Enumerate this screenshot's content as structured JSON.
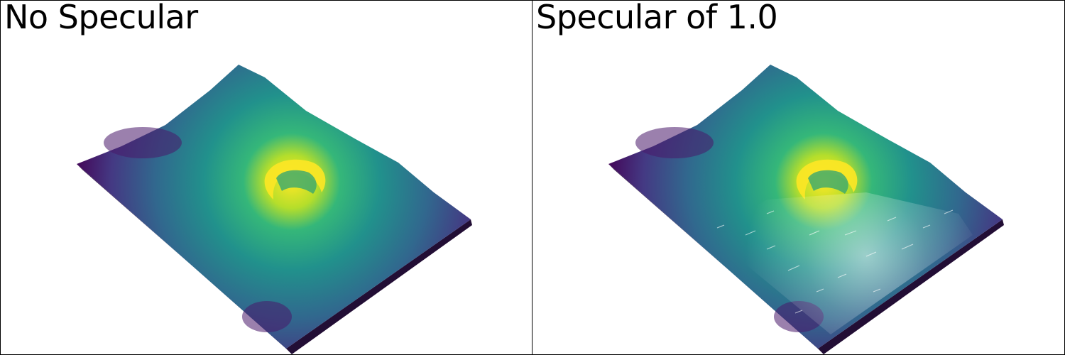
{
  "viewports": [
    {
      "title": "No Specular",
      "specular": 0.0,
      "colormap": "viridis"
    },
    {
      "title": "Specular of 1.0",
      "specular": 1.0,
      "colormap": "viridis"
    }
  ],
  "colors": {
    "background": "#ffffff",
    "border": "#000000",
    "viridis_low": "#440154",
    "viridis_mid": "#21918c",
    "viridis_high": "#fde725"
  }
}
